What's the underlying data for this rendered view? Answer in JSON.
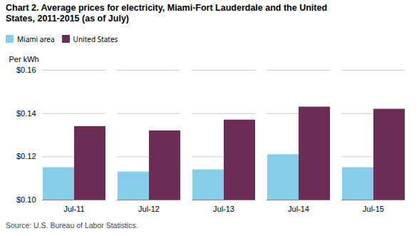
{
  "chart_data": {
    "type": "bar",
    "title": "Chart 2.  Average prices for electricity, Miami-Fort Lauderdale and the United\nStates, 2011-2015 (as of July)",
    "ylabel": "Per kWh",
    "source": "Source: U.S. Bureau of Labor Statistics.",
    "categories": [
      "Jul-11",
      "Jul-12",
      "Jul-13",
      "Jul-14",
      "Jul-15"
    ],
    "series": [
      {
        "name": "Miami area",
        "color": "#87CEEB",
        "values": [
          0.115,
          0.113,
          0.114,
          0.121,
          0.115
        ]
      },
      {
        "name": "United States",
        "color": "#6B2D56",
        "values": [
          0.134,
          0.132,
          0.137,
          0.143,
          0.142
        ]
      }
    ],
    "ylim": [
      0.1,
      0.16
    ],
    "yticks": [
      {
        "value": 0.1,
        "label": "$0.10"
      },
      {
        "value": 0.12,
        "label": "$0.12"
      },
      {
        "value": 0.14,
        "label": "$0.14"
      },
      {
        "value": 0.16,
        "label": "$0.16"
      }
    ],
    "grid": true,
    "legend": "top"
  }
}
